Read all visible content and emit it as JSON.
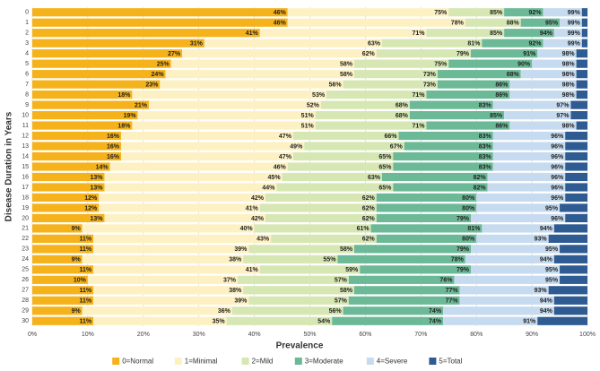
{
  "chart_data": {
    "type": "cumulative_bar",
    "orientation": "horizontal",
    "xlabel": "Prevalence",
    "ylabel": "Disease Duration in Years",
    "categories": [
      "0",
      "1",
      "2",
      "3",
      "4",
      "5",
      "6",
      "7",
      "8",
      "9",
      "10",
      "11",
      "12",
      "13",
      "14",
      "15",
      "16",
      "17",
      "18",
      "19",
      "20",
      "21",
      "22",
      "23",
      "24",
      "25",
      "26",
      "27",
      "28",
      "29",
      "30"
    ],
    "xlim": [
      0,
      100
    ],
    "xticks": [
      {
        "value": 0,
        "label": "0%"
      },
      {
        "value": 10,
        "label": "10%"
      },
      {
        "value": 20,
        "label": "20%"
      },
      {
        "value": 30,
        "label": "30%"
      },
      {
        "value": 40,
        "label": "40%"
      },
      {
        "value": 50,
        "label": "50%"
      },
      {
        "value": 60,
        "label": "60%"
      },
      {
        "value": 70,
        "label": "70%"
      },
      {
        "value": 80,
        "label": "80%"
      },
      {
        "value": 90,
        "label": "90%"
      },
      {
        "value": 100,
        "label": "100%"
      }
    ],
    "grid": true,
    "legend": "bottom",
    "series": [
      {
        "name": "0=Normal",
        "color": "#f5b21b",
        "values": [
          46,
          46,
          41,
          31,
          27,
          25,
          24,
          23,
          18,
          21,
          19,
          18,
          16,
          16,
          16,
          14,
          13,
          13,
          12,
          12,
          13,
          9,
          11,
          11,
          9,
          11,
          10,
          11,
          11,
          9,
          11
        ],
        "value_labels": [
          "46%",
          "46%",
          "41%",
          "31%",
          "27%",
          "25%",
          "24%",
          "23%",
          "18%",
          "21%",
          "19%",
          "18%",
          "16%",
          "16%",
          "16%",
          "14%",
          "13%",
          "13%",
          "12%",
          "12%",
          "13%",
          "9%",
          "11%",
          "11%",
          "9%",
          "11%",
          "10%",
          "11%",
          "11%",
          "9%",
          "11%"
        ]
      },
      {
        "name": "1=Minimal",
        "color": "#fdf1c3",
        "values": [
          75,
          78,
          71,
          63,
          62,
          58,
          58,
          56,
          53,
          52,
          51,
          51,
          47,
          49,
          47,
          46,
          45,
          44,
          42,
          41,
          42,
          40,
          43,
          39,
          38,
          41,
          37,
          38,
          39,
          36,
          35
        ],
        "value_labels": [
          "75%",
          "78%",
          "71%",
          "63%",
          "62%",
          "58%",
          "58%",
          "56%",
          "53%",
          "52%",
          "51%",
          "51%",
          "47%",
          "49%",
          "47%",
          "46%",
          "45%",
          "44%",
          "42%",
          "41%",
          "42%",
          "40%",
          "43%",
          "39%",
          "38%",
          "41%",
          "37%",
          "38%",
          "39%",
          "36%",
          "35%"
        ]
      },
      {
        "name": "2=Mild",
        "color": "#d7e7b3",
        "values": [
          85,
          88,
          85,
          81,
          79,
          75,
          73,
          73,
          71,
          68,
          68,
          71,
          66,
          67,
          65,
          65,
          63,
          65,
          62,
          62,
          62,
          61,
          62,
          58,
          55,
          59,
          57,
          58,
          57,
          56,
          54
        ],
        "value_labels": [
          "85%",
          "88%",
          "85%",
          "81%",
          "79%",
          "75%",
          "73%",
          "73%",
          "71%",
          "68%",
          "68%",
          "71%",
          "66%",
          "67%",
          "65%",
          "65%",
          "63%",
          "65%",
          "62%",
          "62%",
          "62%",
          "61%",
          "62%",
          "58%",
          "55%",
          "59%",
          "57%",
          "58%",
          "57%",
          "56%",
          "54%"
        ]
      },
      {
        "name": "3=Moderate",
        "color": "#6cb997",
        "values": [
          92,
          95,
          94,
          92,
          91,
          90,
          88,
          86,
          86,
          83,
          85,
          86,
          83,
          83,
          83,
          83,
          82,
          82,
          80,
          80,
          79,
          81,
          80,
          79,
          78,
          79,
          76,
          77,
          77,
          74,
          74
        ],
        "value_labels": [
          "92%",
          "95%",
          "94%",
          "92%",
          "91%",
          "90%",
          "88%",
          "86%",
          "86%",
          "83%",
          "85%",
          "86%",
          "83%",
          "83%",
          "83%",
          "83%",
          "82%",
          "82%",
          "80%",
          "80%",
          "79%",
          "81%",
          "80%",
          "79%",
          "78%",
          "79%",
          "76%",
          "77%",
          "77%",
          "74%",
          "74%"
        ]
      },
      {
        "name": "4=Severe",
        "color": "#c6dbef",
        "values": [
          99,
          99,
          99,
          99,
          98,
          98,
          98,
          98,
          98,
          97,
          97,
          98,
          96,
          96,
          96,
          96,
          96,
          96,
          96,
          95,
          96,
          94,
          93,
          95,
          94,
          95,
          95,
          93,
          94,
          94,
          91
        ],
        "value_labels": [
          "99%",
          "99%",
          "99%",
          "99%",
          "98%",
          "98%",
          "98%",
          "98%",
          "98%",
          "97%",
          "97%",
          "98%",
          "96%",
          "96%",
          "96%",
          "96%",
          "96%",
          "96%",
          "96%",
          "95%",
          "96%",
          "94%",
          "93%",
          "95%",
          "94%",
          "95%",
          "95%",
          "93%",
          "94%",
          "94%",
          "91%"
        ]
      },
      {
        "name": "5=Total",
        "color": "#2f5b93",
        "values": [
          100,
          100,
          100,
          100,
          100,
          100,
          100,
          100,
          100,
          100,
          100,
          100,
          100,
          100,
          100,
          100,
          100,
          100,
          100,
          100,
          100,
          100,
          100,
          100,
          100,
          100,
          100,
          100,
          100,
          100,
          100
        ]
      }
    ]
  }
}
